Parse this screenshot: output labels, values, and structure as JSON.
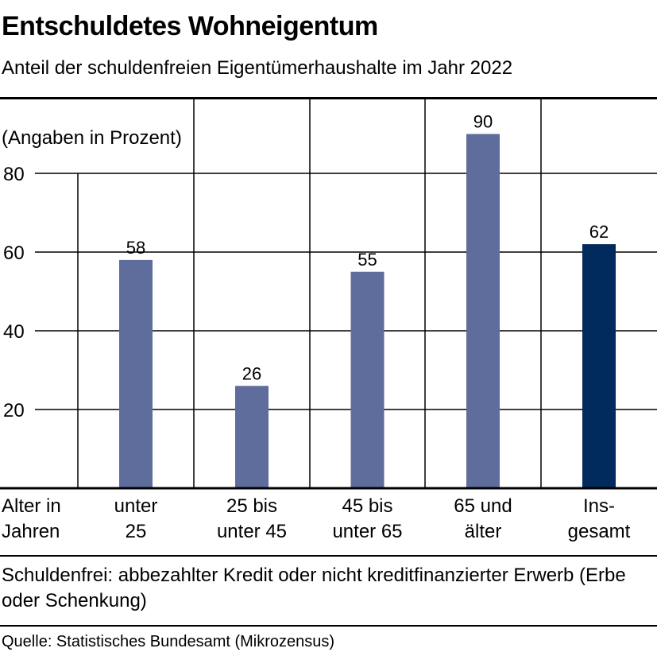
{
  "title": "Entschuldetes Wohneigentum",
  "subtitle": "Anteil der schuldenfreien Eigentümerhaushalte im Jahr 2022",
  "unit_label": "(Angaben in Prozent)",
  "note": "Schuldenfrei: abbezahlter Kredit oder nicht kreditfinanzierter Erwerb (Erbe oder Schenkung)",
  "source": "Quelle: Statistisches Bundesamt (Mikrozensus)",
  "colors": {
    "bar": "#5f6d9c",
    "bar_total": "#002b5c",
    "grid": "#000000"
  },
  "chart_data": {
    "type": "bar",
    "title": "Entschuldetes Wohneigentum",
    "xlabel": "Alter in Jahren",
    "ylabel": "(Angaben in Prozent)",
    "xlabel_lines": [
      "Alter in",
      "Jahren"
    ],
    "categories": [
      "unter 25",
      "25 bis unter 45",
      "45 bis unter 65",
      "65 und älter",
      "Ins-gesamt"
    ],
    "category_lines": [
      [
        "unter",
        "25"
      ],
      [
        "25 bis",
        "unter 45"
      ],
      [
        "45 bis",
        "unter 65"
      ],
      [
        "65 und",
        "älter"
      ],
      [
        "Ins-",
        "gesamt"
      ]
    ],
    "values": [
      58,
      26,
      55,
      90,
      62
    ],
    "data_labels": [
      "58",
      "26",
      "55",
      "90",
      "62"
    ],
    "highlight_index": 4,
    "ylim": [
      0,
      90
    ],
    "yticks": [
      20,
      40,
      60,
      80
    ],
    "grid": true,
    "legend": "none"
  }
}
